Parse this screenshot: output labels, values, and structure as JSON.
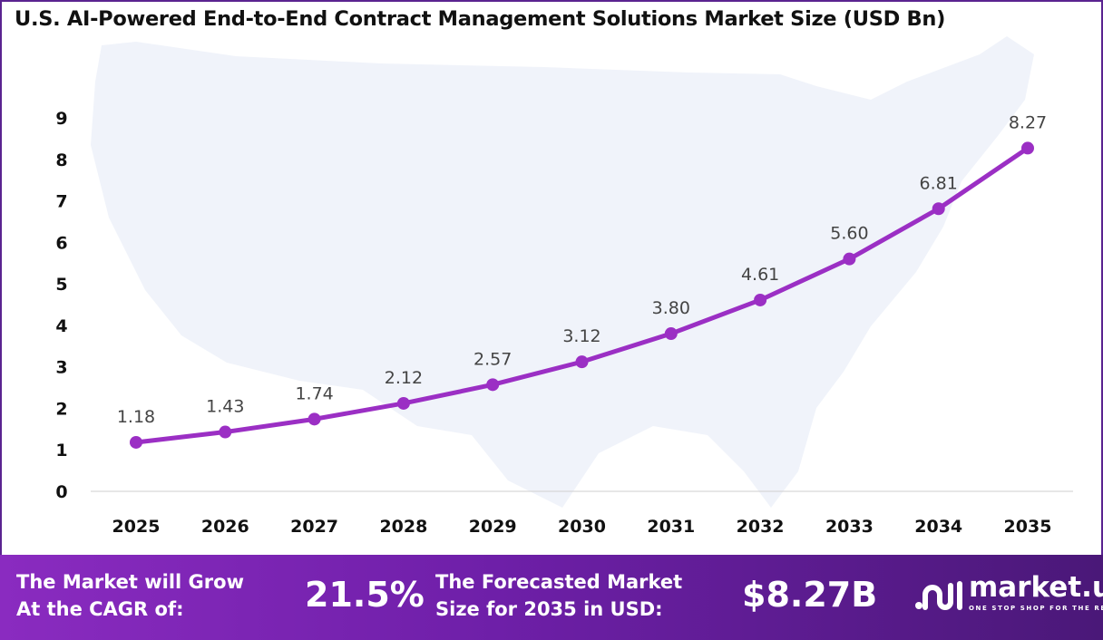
{
  "chart_data": {
    "type": "line",
    "title": "U.S. AI-Powered End-to-End Contract Management Solutions Market Size (USD Bn)",
    "categories": [
      "2025",
      "2026",
      "2027",
      "2028",
      "2029",
      "2030",
      "2031",
      "2032",
      "2033",
      "2034",
      "2035"
    ],
    "values": [
      1.18,
      1.43,
      1.74,
      2.12,
      2.57,
      3.12,
      3.8,
      4.61,
      5.6,
      6.81,
      8.27
    ],
    "data_labels": [
      "1.18",
      "1.43",
      "1.74",
      "2.12",
      "2.57",
      "3.12",
      "3.80",
      "4.61",
      "5.60",
      "6.81",
      "8.27"
    ],
    "yticks": [
      "0",
      "1",
      "2",
      "3",
      "4",
      "5",
      "6",
      "7",
      "8",
      "9"
    ],
    "ylim": [
      0,
      9
    ],
    "grid": false,
    "line_color": "#9b2fc4",
    "background": "U.S. map silhouette"
  },
  "footer": {
    "cagr_label": "The Market will Grow\nAt the CAGR of:",
    "cagr_value": "21.5%",
    "forecast_label": "The Forecasted Market\nSize for 2035 in USD:",
    "forecast_value": "$8.27B",
    "logo_name": "market.us",
    "logo_tagline": "ONE STOP SHOP FOR THE REPORTS"
  }
}
